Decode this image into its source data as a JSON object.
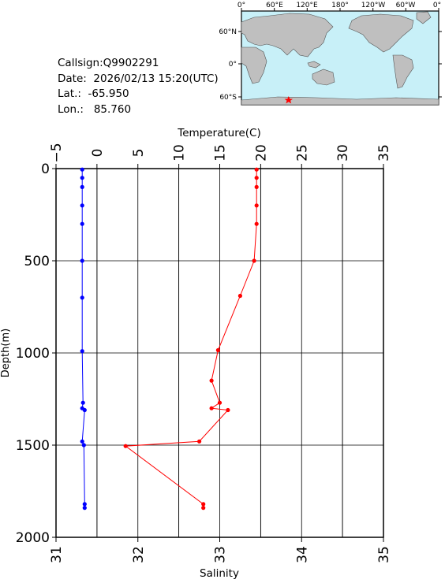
{
  "info": {
    "callsign": "Callsign:Q9902291",
    "date": "Date:  2026/02/13 15:20(UTC)",
    "lat": "Lat.:  -65.950",
    "lon": "Lon.:   85.760"
  },
  "map": {
    "lon_labels": [
      "0°",
      "60°E",
      "120°E",
      "180°",
      "120°W",
      "60°W",
      "0°"
    ],
    "lat_labels": [
      "60°N",
      "0°",
      "60°S"
    ],
    "float_position": {
      "lat": -65.95,
      "lon": 85.76
    },
    "ocean_color": "#c8f0f8",
    "land_color": "#bfbfbf",
    "marker_color": "#ff0000",
    "marker_icon": "star-icon"
  },
  "chart_data": {
    "type": "line",
    "top_axis": {
      "label": "Temperature(C)",
      "range": [
        -5,
        35
      ],
      "ticks": [
        "−5",
        "0",
        "5",
        "10",
        "15",
        "20",
        "25",
        "30",
        "35"
      ]
    },
    "bottom_axis": {
      "label": "Salinity",
      "range": [
        31,
        35
      ],
      "ticks": [
        "31",
        "32",
        "33",
        "34",
        "35"
      ]
    },
    "y_axis": {
      "label": "Depth(m)",
      "range": [
        0,
        2000
      ],
      "inverted": true,
      "ticks": [
        "0",
        "500",
        "1000",
        "1500",
        "2000"
      ]
    },
    "grid": true,
    "series": [
      {
        "axis": "top",
        "color": "#0000ff",
        "points": [
          {
            "x": -1.8,
            "depth": 5
          },
          {
            "x": -1.8,
            "depth": 50
          },
          {
            "x": -1.8,
            "depth": 100
          },
          {
            "x": -1.8,
            "depth": 200
          },
          {
            "x": -1.8,
            "depth": 300
          },
          {
            "x": -1.8,
            "depth": 500
          },
          {
            "x": -1.8,
            "depth": 700
          },
          {
            "x": -1.8,
            "depth": 990
          },
          {
            "x": -1.7,
            "depth": 1270
          },
          {
            "x": -1.8,
            "depth": 1300
          },
          {
            "x": -1.5,
            "depth": 1310
          },
          {
            "x": -1.8,
            "depth": 1480
          },
          {
            "x": -1.6,
            "depth": 1500
          },
          {
            "x": -1.5,
            "depth": 1820
          },
          {
            "x": -1.5,
            "depth": 1840
          }
        ]
      },
      {
        "axis": "bottom",
        "color": "#ff0000",
        "points": [
          {
            "x": 33.45,
            "depth": 5
          },
          {
            "x": 33.45,
            "depth": 50
          },
          {
            "x": 33.45,
            "depth": 100
          },
          {
            "x": 33.45,
            "depth": 200
          },
          {
            "x": 33.45,
            "depth": 300
          },
          {
            "x": 33.42,
            "depth": 500
          },
          {
            "x": 33.25,
            "depth": 690
          },
          {
            "x": 32.98,
            "depth": 985
          },
          {
            "x": 32.9,
            "depth": 1150
          },
          {
            "x": 33.0,
            "depth": 1270
          },
          {
            "x": 32.9,
            "depth": 1300
          },
          {
            "x": 33.1,
            "depth": 1310
          },
          {
            "x": 32.75,
            "depth": 1480
          },
          {
            "x": 31.85,
            "depth": 1505
          },
          {
            "x": 32.8,
            "depth": 1820
          },
          {
            "x": 32.8,
            "depth": 1840
          }
        ]
      }
    ]
  }
}
